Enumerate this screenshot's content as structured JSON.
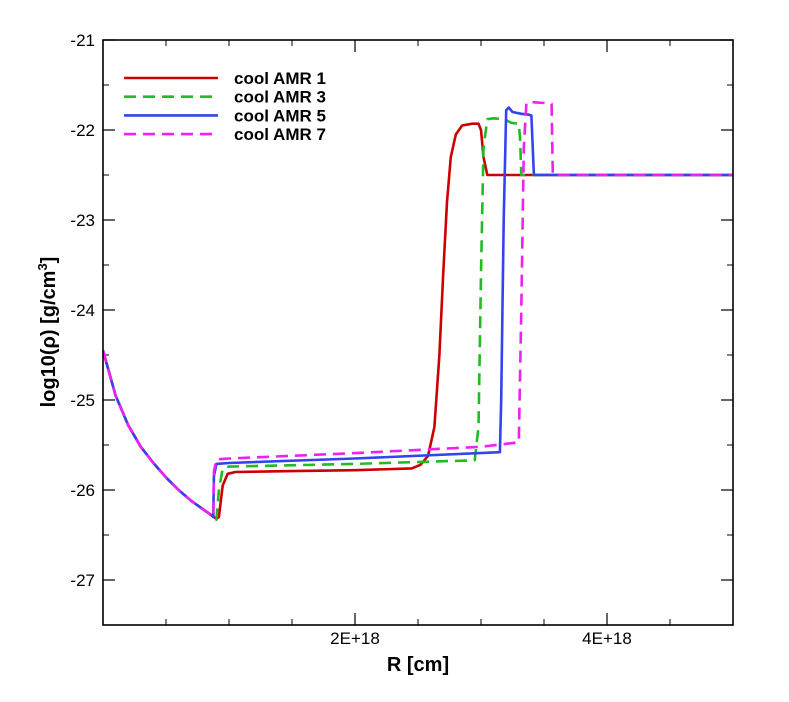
{
  "chart_data": {
    "type": "line",
    "title": "",
    "xlabel": "R [cm]",
    "ylabel": {
      "main": "log10(ρ) [g/cm",
      "sup": "3",
      "tail": "]"
    },
    "xlim": [
      0,
      5e+18
    ],
    "ylim": [
      -27.5,
      -21
    ],
    "xticks": [
      {
        "value": 2e+18,
        "label": "2E+18"
      },
      {
        "value": 4e+18,
        "label": "4E+18"
      }
    ],
    "x_minor_step": 5e+17,
    "yticks": [
      {
        "value": -21,
        "label": "-21"
      },
      {
        "value": -22,
        "label": "-22"
      },
      {
        "value": -23,
        "label": "-23"
      },
      {
        "value": -24,
        "label": "-24"
      },
      {
        "value": -25,
        "label": "-25"
      },
      {
        "value": -26,
        "label": "-26"
      },
      {
        "value": -27,
        "label": "-27"
      }
    ],
    "y_minor_step": 0.5,
    "legend_position": "top-left",
    "series": [
      {
        "name": "cool AMR 1",
        "color": "#cc0000",
        "dash": "solid",
        "points": [
          [
            0,
            -24.45
          ],
          [
            1e+17,
            -24.95
          ],
          [
            2e+17,
            -25.28
          ],
          [
            3e+17,
            -25.52
          ],
          [
            4e+17,
            -25.7
          ],
          [
            5e+17,
            -25.86
          ],
          [
            6e+17,
            -26.0
          ],
          [
            7e+17,
            -26.12
          ],
          [
            8e+17,
            -26.22
          ],
          [
            8.6e+17,
            -26.28
          ],
          [
            9e+17,
            -26.32
          ],
          [
            9.2e+17,
            -26.3
          ],
          [
            9.5e+17,
            -25.95
          ],
          [
            9.9e+17,
            -25.82
          ],
          [
            1.05e+18,
            -25.8
          ],
          [
            1.5e+18,
            -25.79
          ],
          [
            2e+18,
            -25.78
          ],
          [
            2.45e+18,
            -25.76
          ],
          [
            2.52e+18,
            -25.72
          ],
          [
            2.58e+18,
            -25.62
          ],
          [
            2.63e+18,
            -25.3
          ],
          [
            2.67e+18,
            -24.5
          ],
          [
            2.7e+18,
            -23.6
          ],
          [
            2.73e+18,
            -22.8
          ],
          [
            2.76e+18,
            -22.3
          ],
          [
            2.8e+18,
            -22.05
          ],
          [
            2.85e+18,
            -21.95
          ],
          [
            2.93e+18,
            -21.93
          ],
          [
            2.98e+18,
            -21.93
          ],
          [
            3e+18,
            -22.0
          ],
          [
            3.02e+18,
            -22.3
          ],
          [
            3.05e+18,
            -22.5
          ],
          [
            5e+18,
            -22.5
          ]
        ]
      },
      {
        "name": "cool AMR 3",
        "color": "#22bb22",
        "dash": "dashed",
        "points": [
          [
            0,
            -24.45
          ],
          [
            1e+17,
            -24.95
          ],
          [
            2e+17,
            -25.28
          ],
          [
            3e+17,
            -25.52
          ],
          [
            4e+17,
            -25.7
          ],
          [
            5e+17,
            -25.86
          ],
          [
            6e+17,
            -26.0
          ],
          [
            7e+17,
            -26.12
          ],
          [
            8e+17,
            -26.22
          ],
          [
            8.6e+17,
            -26.28
          ],
          [
            9e+17,
            -26.33
          ],
          [
            9.2e+17,
            -26.0
          ],
          [
            9.5e+17,
            -25.76
          ],
          [
            1e+18,
            -25.74
          ],
          [
            2e+18,
            -25.71
          ],
          [
            2.95e+18,
            -25.67
          ],
          [
            2.98e+18,
            -25.3
          ],
          [
            3e+18,
            -23.6
          ],
          [
            3.02e+18,
            -22.2
          ],
          [
            3.05e+18,
            -21.88
          ],
          [
            3.1e+18,
            -21.87
          ],
          [
            3.17e+18,
            -21.88
          ],
          [
            3.2e+18,
            -21.89
          ],
          [
            3.24e+18,
            -21.92
          ],
          [
            3.3e+18,
            -21.93
          ],
          [
            3.31e+18,
            -22.1
          ],
          [
            3.32e+18,
            -22.5
          ],
          [
            5e+18,
            -22.5
          ]
        ]
      },
      {
        "name": "cool AMR 5",
        "color": "#3344ee",
        "dash": "solid",
        "points": [
          [
            0,
            -24.45
          ],
          [
            1e+17,
            -24.95
          ],
          [
            2e+17,
            -25.28
          ],
          [
            3e+17,
            -25.52
          ],
          [
            4e+17,
            -25.7
          ],
          [
            5e+17,
            -25.86
          ],
          [
            6e+17,
            -26.0
          ],
          [
            7e+17,
            -26.12
          ],
          [
            8e+17,
            -26.22
          ],
          [
            8.6e+17,
            -26.28
          ],
          [
            8.75e+17,
            -26.3
          ],
          [
            8.8e+17,
            -25.85
          ],
          [
            9e+17,
            -25.71
          ],
          [
            1e+18,
            -25.7
          ],
          [
            2e+18,
            -25.65
          ],
          [
            3.15e+18,
            -25.58
          ],
          [
            3.16e+18,
            -25.0
          ],
          [
            3.18e+18,
            -23.0
          ],
          [
            3.2e+18,
            -21.78
          ],
          [
            3.22e+18,
            -21.75
          ],
          [
            3.25e+18,
            -21.8
          ],
          [
            3.32e+18,
            -21.82
          ],
          [
            3.38e+18,
            -21.83
          ],
          [
            3.4e+18,
            -21.84
          ],
          [
            3.42e+18,
            -22.5
          ],
          [
            5e+18,
            -22.5
          ]
        ]
      },
      {
        "name": "cool AMR 7",
        "color": "#ee22ee",
        "dash": "dashed",
        "points": [
          [
            0,
            -24.45
          ],
          [
            1e+17,
            -24.95
          ],
          [
            2e+17,
            -25.28
          ],
          [
            3e+17,
            -25.52
          ],
          [
            4e+17,
            -25.7
          ],
          [
            5e+17,
            -25.86
          ],
          [
            6e+17,
            -26.0
          ],
          [
            7e+17,
            -26.12
          ],
          [
            8e+17,
            -26.22
          ],
          [
            8.6e+17,
            -26.28
          ],
          [
            8.75e+17,
            -26.3
          ],
          [
            8.8e+17,
            -25.8
          ],
          [
            9e+17,
            -25.66
          ],
          [
            1e+18,
            -25.65
          ],
          [
            2e+18,
            -25.59
          ],
          [
            3e+18,
            -25.52
          ],
          [
            3.3e+18,
            -25.47
          ],
          [
            3.32e+18,
            -24.0
          ],
          [
            3.34e+18,
            -22.2
          ],
          [
            3.36e+18,
            -21.7
          ],
          [
            3.4e+18,
            -21.69
          ],
          [
            3.5e+18,
            -21.7
          ],
          [
            3.56e+18,
            -21.71
          ],
          [
            3.57e+18,
            -22.5
          ],
          [
            5e+18,
            -22.5
          ]
        ]
      }
    ]
  }
}
